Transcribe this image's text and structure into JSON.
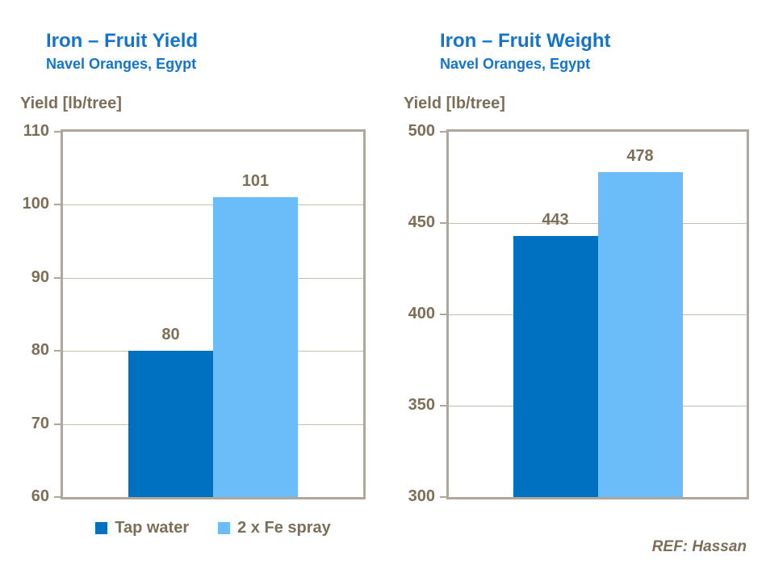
{
  "colors": {
    "title_blue": "#1374CE",
    "bar_dark": "#0070C0",
    "bar_light": "#6ABDF9",
    "axis_text": "#7D6E58",
    "gridline": "#C7BDB1",
    "frame": "#AFA79B"
  },
  "legend": {
    "items": [
      {
        "label": "Tap water",
        "color": "#0070C0"
      },
      {
        "label": "2 x Fe spray",
        "color": "#6ABDF9"
      }
    ]
  },
  "reference": "REF: Hassan",
  "chart_data": [
    {
      "type": "bar",
      "title": "Iron – Fruit Yield",
      "subtitle": "Navel Oranges, Egypt",
      "ylabel": "Yield [lb/tree]",
      "categories": [
        "Tap water",
        "2 x Fe spray"
      ],
      "values": [
        80,
        101
      ],
      "series_colors": [
        "#0070C0",
        "#6ABDF9"
      ],
      "ylim": [
        60,
        110
      ],
      "yticks": [
        60,
        70,
        80,
        90,
        100,
        110
      ],
      "grid": true,
      "legend_position": "bottom"
    },
    {
      "type": "bar",
      "title": "Iron – Fruit Weight",
      "subtitle": "Navel Oranges, Egypt",
      "ylabel": "Yield [lb/tree]",
      "categories": [
        "Tap water",
        "2 x Fe spray"
      ],
      "values": [
        443,
        478
      ],
      "series_colors": [
        "#0070C0",
        "#6ABDF9"
      ],
      "ylim": [
        300,
        500
      ],
      "yticks": [
        300,
        350,
        400,
        450,
        500
      ],
      "grid": true,
      "legend_position": "none"
    }
  ]
}
